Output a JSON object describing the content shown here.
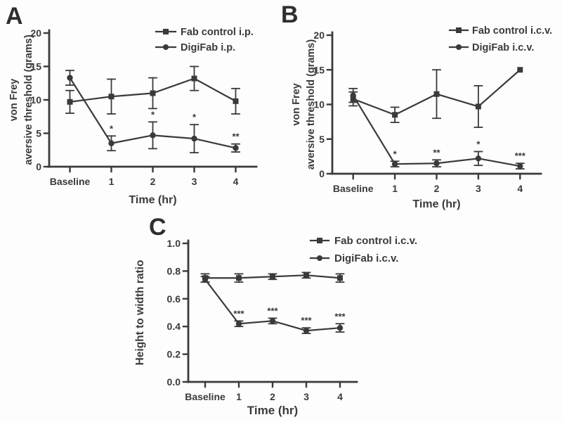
{
  "figure": {
    "background": "#fdfdfd",
    "ink": "#3a3a3a"
  },
  "chart_data": [
    {
      "panel_label": "A",
      "type": "line",
      "categories": [
        "Baseline",
        "1",
        "2",
        "3",
        "4"
      ],
      "xlabel": "Time (hr)",
      "ylabel_lines": [
        "von Frey",
        "aversive threshold (grams)"
      ],
      "ylim": [
        0,
        20
      ],
      "yticks": [
        0,
        5,
        10,
        15,
        20
      ],
      "ytick_labels": [
        "0",
        "5",
        "10",
        "15",
        "20"
      ],
      "grid": false,
      "legend_position": "top-right",
      "series": [
        {
          "name": "Fab control i.p.",
          "marker": "square",
          "values": [
            9.7,
            10.5,
            11.0,
            13.2,
            9.8
          ],
          "errors": [
            1.7,
            2.6,
            2.3,
            1.8,
            1.9
          ],
          "annotations": [
            "",
            "",
            "",
            "",
            ""
          ]
        },
        {
          "name": "DigiFab i.p.",
          "marker": "circle",
          "values": [
            13.3,
            3.5,
            4.7,
            4.2,
            2.8
          ],
          "errors": [
            1.1,
            1.1,
            2.0,
            2.1,
            0.6
          ],
          "annotations": [
            "",
            "*",
            "*",
            "*",
            "**"
          ]
        }
      ]
    },
    {
      "panel_label": "B",
      "type": "line",
      "categories": [
        "Baseline",
        "1",
        "2",
        "3",
        "4"
      ],
      "xlabel": "Time (hr)",
      "ylabel_lines": [
        "von Frey",
        "aversive threshold (grams)"
      ],
      "ylim": [
        0,
        20
      ],
      "yticks": [
        0,
        5,
        10,
        15,
        20
      ],
      "ytick_labels": [
        "0",
        "5",
        "10",
        "15",
        "20"
      ],
      "grid": false,
      "legend_position": "top-right",
      "series": [
        {
          "name": "Fab control i.c.v.",
          "marker": "square",
          "values": [
            10.8,
            8.5,
            11.5,
            9.7,
            15.0
          ],
          "errors": [
            1.0,
            1.1,
            3.5,
            3.0,
            0
          ],
          "annotations": [
            "",
            "",
            "",
            "",
            ""
          ]
        },
        {
          "name": "DigiFab i.c.v.",
          "marker": "circle",
          "values": [
            11.3,
            1.4,
            1.5,
            2.2,
            1.1
          ],
          "errors": [
            1.0,
            0.4,
            0.5,
            1.0,
            0.4
          ],
          "annotations": [
            "",
            "*",
            "**",
            "*",
            "***"
          ]
        }
      ]
    },
    {
      "panel_label": "C",
      "type": "line",
      "categories": [
        "Baseline",
        "1",
        "2",
        "3",
        "4"
      ],
      "xlabel": "Time (hr)",
      "ylabel_lines": [
        "Height to width ratio"
      ],
      "ylim": [
        0,
        1.0
      ],
      "yticks": [
        0,
        0.2,
        0.4,
        0.6,
        0.8,
        1.0
      ],
      "ytick_labels": [
        "0.0",
        "0.2",
        "0.4",
        "0.6",
        "0.8",
        "1.0"
      ],
      "grid": false,
      "legend_position": "top-right",
      "series": [
        {
          "name": "Fab control i.c.v.",
          "marker": "square",
          "values": [
            0.75,
            0.75,
            0.76,
            0.77,
            0.75
          ],
          "errors": [
            0.03,
            0.03,
            0.02,
            0.02,
            0.03
          ],
          "annotations": [
            "",
            "",
            "",
            "",
            ""
          ]
        },
        {
          "name": "DigiFab i.c.v.",
          "marker": "circle",
          "values": [
            0.74,
            0.42,
            0.44,
            0.37,
            0.39
          ],
          "errors": [
            0.02,
            0.02,
            0.02,
            0.02,
            0.03
          ],
          "annotations": [
            "",
            "***",
            "***",
            "***",
            "***"
          ]
        }
      ]
    }
  ]
}
